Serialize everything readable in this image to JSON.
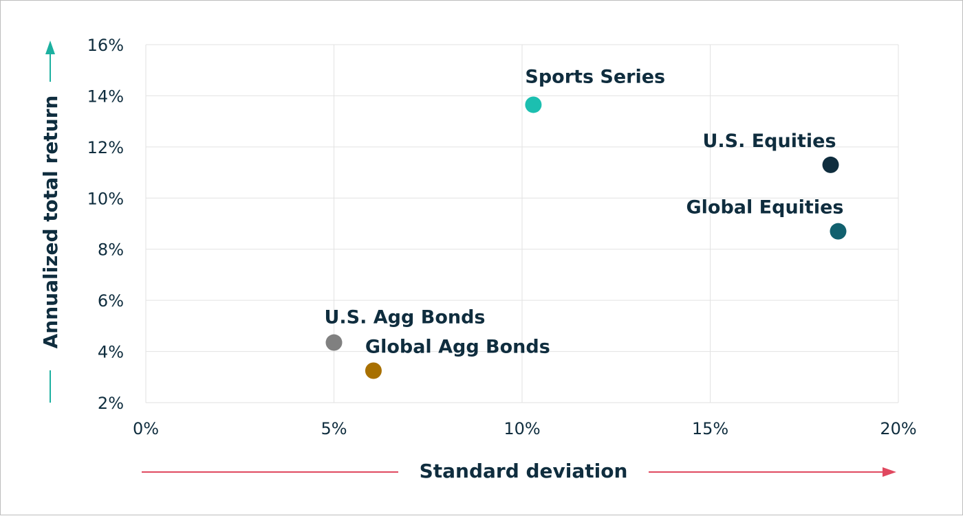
{
  "chart_data": {
    "type": "scatter",
    "xlabel": "Standard deviation",
    "ylabel": "Annualized total return",
    "xlim": [
      0,
      20
    ],
    "ylim": [
      2,
      16
    ],
    "x_ticks": [
      0,
      5,
      10,
      15,
      20
    ],
    "y_ticks": [
      2,
      4,
      6,
      8,
      10,
      12,
      14,
      16
    ],
    "x_tick_labels": [
      "0%",
      "5%",
      "10%",
      "15%",
      "20%"
    ],
    "y_tick_labels": [
      "2%",
      "4%",
      "6%",
      "8%",
      "10%",
      "12%",
      "14%",
      "16%"
    ],
    "grid": true,
    "points": [
      {
        "label": "Sports Series",
        "x": 10.3,
        "y": 13.65,
        "color": "#1cbfb0"
      },
      {
        "label": "U.S. Equities",
        "x": 18.2,
        "y": 11.3,
        "color": "#0f2d3e"
      },
      {
        "label": "Global Equities",
        "x": 18.4,
        "y": 8.7,
        "color": "#11606e"
      },
      {
        "label": "U.S. Agg Bonds",
        "x": 5.0,
        "y": 4.35,
        "color": "#808080"
      },
      {
        "label": "Global Agg Bonds",
        "x": 6.05,
        "y": 3.25,
        "color": "#a87000"
      }
    ],
    "x_arrow_color": "#e0485f",
    "y_arrow_color": "#1cb0a0"
  }
}
